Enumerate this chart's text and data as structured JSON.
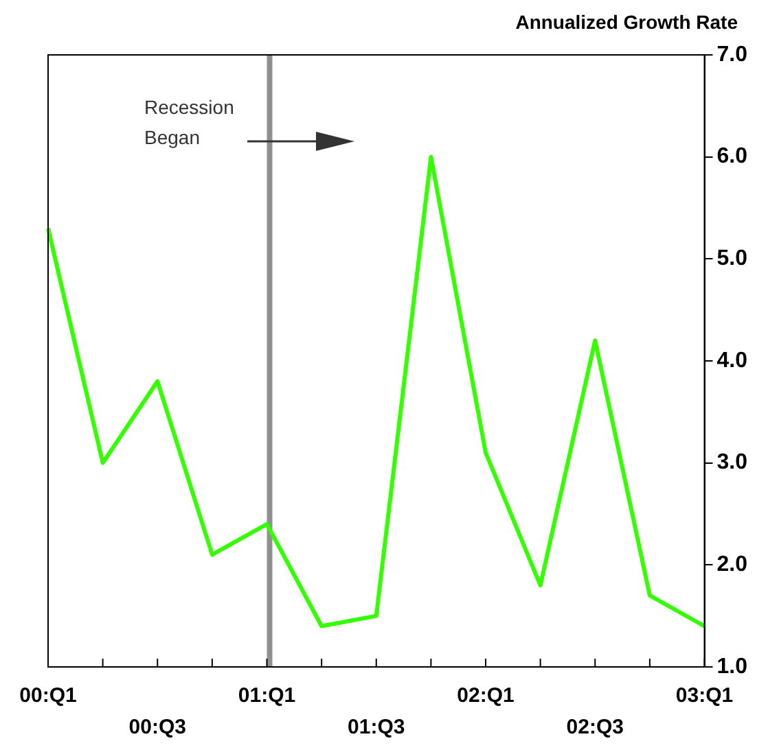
{
  "chart_data": {
    "type": "line",
    "title": "Annualized Growth Rate",
    "categories": [
      "00:Q1",
      null,
      "00:Q3",
      null,
      "01:Q1",
      null,
      "01:Q3",
      null,
      "02:Q1",
      null,
      "02:Q3",
      null,
      "03:Q1"
    ],
    "series": [
      {
        "color": "#33ff00",
        "values": [
          5.3,
          3.0,
          3.8,
          2.1,
          2.4,
          1.4,
          1.5,
          6.0,
          3.1,
          1.8,
          4.2,
          1.7,
          1.4
        ]
      }
    ],
    "ylim": [
      1,
      7
    ],
    "yticks": [
      {
        "value": 1,
        "label": "1.0"
      },
      {
        "value": 2,
        "label": "2.0"
      },
      {
        "value": 3,
        "label": "3.0"
      },
      {
        "value": 4,
        "label": "4.0"
      },
      {
        "value": 5,
        "label": "5.0"
      },
      {
        "value": 6,
        "label": "6.0"
      },
      {
        "value": 7,
        "label": "7.0"
      }
    ],
    "ref_lines": [
      {
        "axis": "x",
        "value": "01:Q1",
        "label": "Recession Began",
        "color": "#909090"
      }
    ],
    "grid": false,
    "legend": false,
    "marker": "none",
    "line_style": "solid"
  }
}
